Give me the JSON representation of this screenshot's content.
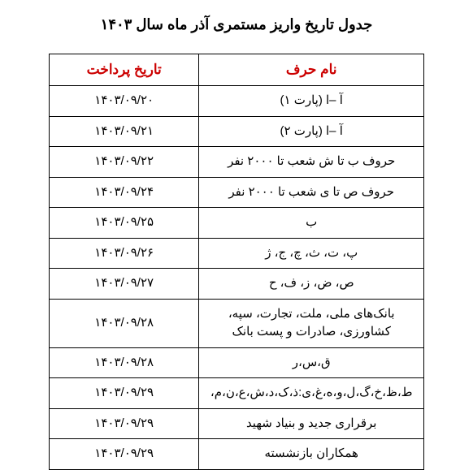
{
  "page_title": "جدول تاریخ واریز مستمری آذر ماه سال ۱۴۰۳",
  "headers": {
    "letter": "نام حرف",
    "date": "تاریخ پرداخت"
  },
  "rows": [
    {
      "letter": "آ –ا (پارت ۱)",
      "date": "۱۴۰۳/۰۹/۲۰"
    },
    {
      "letter": "آ –ا (پارت ۲)",
      "date": "۱۴۰۳/۰۹/۲۱"
    },
    {
      "letter": "حروف ب تا ش شعب تا ۲۰۰۰ نفر",
      "date": "۱۴۰۳/۰۹/۲۲"
    },
    {
      "letter": "حروف ص تا ی شعب تا ۲۰۰۰ نفر",
      "date": "۱۴۰۳/۰۹/۲۴"
    },
    {
      "letter": "ب",
      "date": "۱۴۰۳/۰۹/۲۵"
    },
    {
      "letter": "پ، ت، ث، چ، ج، ژ",
      "date": "۱۴۰۳/۰۹/۲۶"
    },
    {
      "letter": "ص، ض، ز، ف، ح",
      "date": "۱۴۰۳/۰۹/۲۷"
    },
    {
      "letter": "بانک‌های ملی، ملت، تجارت، سپه، کشاورزی، صادرات و پست بانک",
      "date": "۱۴۰۳/۰۹/۲۸"
    },
    {
      "letter": "ق،س،ر",
      "date": "۱۴۰۳/۰۹/۲۸"
    },
    {
      "letter": "ط،ظ،خ،گ،ل،و،ه،غ،ی:ذ،ک،د،ش،ع،ن،م،",
      "date": "۱۴۰۳/۰۹/۲۹"
    },
    {
      "letter": "برقراری جدید و بنیاد شهید",
      "date": "۱۴۰۳/۰۹/۲۹"
    },
    {
      "letter": "همکاران بازنشسته",
      "date": "۱۴۰۳/۰۹/۲۹"
    }
  ],
  "styles": {
    "header_color": "#cc0000",
    "text_color": "#000000",
    "border_color": "#000000",
    "background_color": "#ffffff",
    "title_fontsize": 18,
    "header_fontsize": 17,
    "cell_fontsize": 15
  }
}
